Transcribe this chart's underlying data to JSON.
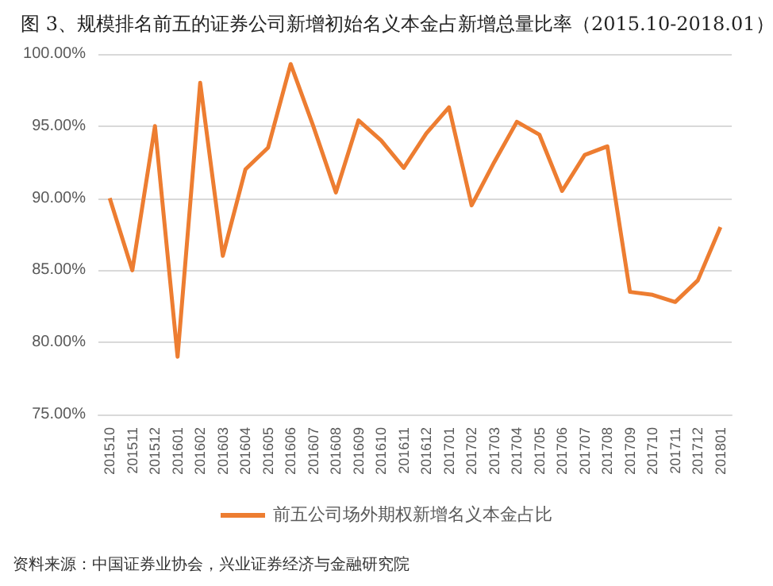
{
  "chart_data": {
    "type": "line",
    "title": "图 3、规模排名前五的证券公司新增初始名义本金占新增总量比率（2015.10-2018.01）",
    "categories": [
      "201510",
      "201511",
      "201512",
      "201601",
      "201602",
      "201603",
      "201604",
      "201605",
      "201606",
      "201607",
      "201608",
      "201609",
      "201610",
      "201611",
      "201612",
      "201701",
      "201702",
      "201703",
      "201704",
      "201705",
      "201706",
      "201707",
      "201708",
      "201709",
      "201710",
      "201711",
      "201712",
      "201801"
    ],
    "series": [
      {
        "name": "前五公司场外期权新增名义本金占比",
        "color": "#ed7d31",
        "values": [
          90,
          85,
          95,
          79,
          98,
          86,
          92,
          93.5,
          99.3,
          95,
          90.4,
          95.4,
          94,
          92.1,
          94.5,
          96.3,
          89.5,
          92.5,
          95.3,
          94.4,
          90.5,
          93,
          93.6,
          83.5,
          83.3,
          82.8,
          84.3,
          88
        ]
      }
    ],
    "ylim": [
      75,
      100
    ],
    "yticks": [
      {
        "value": 75,
        "label": "75.00%"
      },
      {
        "value": 80,
        "label": "80.00%"
      },
      {
        "value": 85,
        "label": "85.00%"
      },
      {
        "value": 90,
        "label": "90.00%"
      },
      {
        "value": 95,
        "label": "95.00%"
      },
      {
        "value": 100,
        "label": "100.00%"
      }
    ],
    "grid": "y",
    "legend": "bottom",
    "marker": "none",
    "line_style": "solid",
    "annotations": [
      "资料来源：中国证券业协会，兴业证券经济与金融研究院"
    ]
  }
}
